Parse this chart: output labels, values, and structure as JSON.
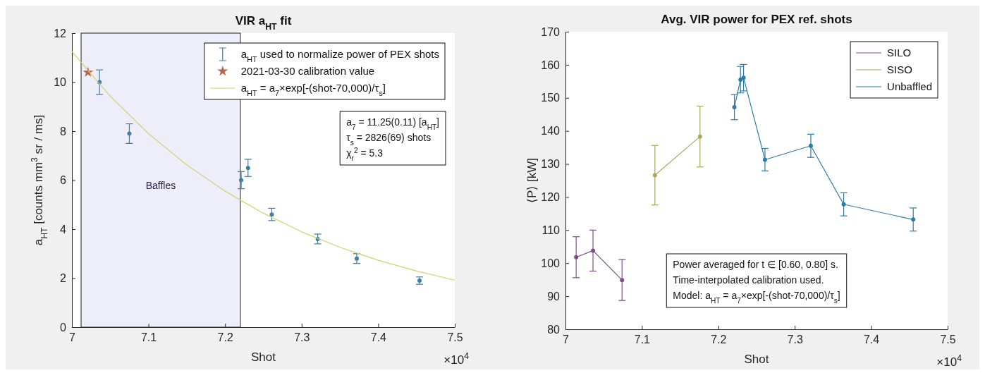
{
  "chart_data": [
    {
      "type": "scatter",
      "title": "VIR a$_{HT}$ fit",
      "xlabel": "Shot",
      "ylabel": "a$_{HT}$ [counts mm$^{3}$ sr / ms]",
      "annotations": [
        "×10$^{4}$",
        "a$_{7}$ = 11.25(0.11) [a$_{HT}$]",
        "τ$_{s}$  = 2826(69) shots",
        "χ$_{r}$$^{2}$ = 5.3"
      ],
      "xlim": [
        7,
        7.5
      ],
      "xticks": [
        7,
        7.1,
        7.2,
        7.3,
        7.4,
        7.5
      ],
      "ylim": [
        0,
        12
      ],
      "yticks": [
        0,
        2,
        4,
        6,
        8,
        10,
        12
      ],
      "marker": "circle",
      "legend": "top right",
      "bands": [
        {
          "axis": "x",
          "from": 7.012,
          "to": 7.22,
          "label": "Baffles",
          "color": "#eeeefa"
        }
      ],
      "series": [
        {
          "name": "a$_{HT}$ used to normalize power of PEX shots",
          "color": "#3a7fa6",
          "x": [
            7.036,
            7.075,
            7.221,
            7.23,
            7.261,
            7.321,
            7.372,
            7.454
          ],
          "values": [
            10.0,
            7.9,
            6.0,
            6.5,
            4.6,
            3.6,
            2.8,
            1.9
          ],
          "errors": [
            0.5,
            0.4,
            0.35,
            0.35,
            0.25,
            0.2,
            0.2,
            0.15
          ]
        },
        {
          "name": "2021-03-30 calibration value",
          "type": "scatter",
          "marker": "star",
          "color": "#b5694a",
          "x": [
            7.021
          ],
          "values": [
            10.4
          ]
        },
        {
          "name": "a$_{HT}$ = a$_{7}$×exp[-(shot-70,000)/τ$_{s}$]",
          "type": "line",
          "marker": "none",
          "color": "#d6d070",
          "x": [
            7.0,
            7.05,
            7.1,
            7.15,
            7.2,
            7.25,
            7.3,
            7.35,
            7.4,
            7.45,
            7.5
          ],
          "values": [
            11.25,
            9.43,
            7.9,
            6.62,
            5.55,
            4.65,
            3.89,
            3.26,
            2.73,
            2.29,
            1.92
          ]
        }
      ]
    },
    {
      "type": "line",
      "title": "Avg. VIR power for PEX ref. shots",
      "xlabel": "Shot",
      "ylabel": "⟨P⟩ [kW]",
      "annotations": [
        "×10$^{4}$",
        "Power averaged for t ∈ [0.60, 0.80] s.",
        "Time-interpolated calibration used.",
        "Model: a$_{HT}$ = a$_{7}$×exp[-(shot-70,000)/τ$_{s}$]"
      ],
      "xlim": [
        7,
        7.5
      ],
      "xticks": [
        7,
        7.1,
        7.2,
        7.3,
        7.4,
        7.5
      ],
      "ylim": [
        80,
        170
      ],
      "yticks": [
        80,
        90,
        100,
        110,
        120,
        130,
        140,
        150,
        160,
        170
      ],
      "marker": "circle",
      "legend": "top right",
      "series": [
        {
          "name": "SILO",
          "color": "#7b4f86",
          "x": [
            7.014,
            7.036,
            7.074
          ],
          "values": [
            101.8,
            103.8,
            94.9
          ],
          "errors": [
            6.2,
            6.2,
            6.2
          ]
        },
        {
          "name": "SISO",
          "color": "#a9a85a",
          "x": [
            7.117,
            7.176
          ],
          "values": [
            126.6,
            138.3
          ],
          "errors": [
            9,
            9.2
          ]
        },
        {
          "name": "Unbaffled",
          "color": "#2e7ba5",
          "x": [
            7.221,
            7.229,
            7.233,
            7.261,
            7.321,
            7.364,
            7.455
          ],
          "values": [
            147.2,
            155.5,
            156.1,
            131.3,
            135.5,
            117.8,
            113.2
          ],
          "errors": [
            3.8,
            4,
            4,
            3.4,
            3.5,
            3.5,
            3.5
          ]
        }
      ]
    }
  ]
}
